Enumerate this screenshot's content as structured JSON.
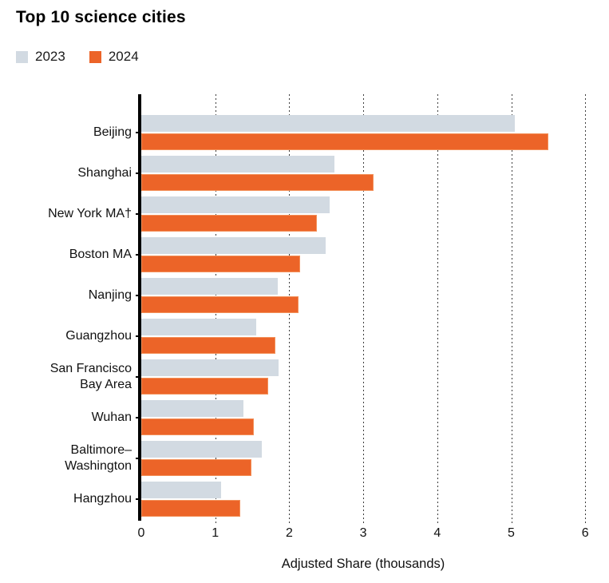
{
  "title": "Top 10 science cities",
  "legend": [
    {
      "label": "2023",
      "color": "#D2DAE2"
    },
    {
      "label": "2024",
      "color": "#EC6428"
    }
  ],
  "colors": {
    "bar_2023": "#D2DAE2",
    "bar_2024": "#EC6428",
    "axis": "#000000",
    "gridline": "#3D3D3D",
    "background": "#FFFFFF"
  },
  "chart_data": {
    "type": "bar",
    "orientation": "horizontal",
    "title": "Top 10 science cities",
    "xlabel": "Adjusted Share (thousands)",
    "ylabel": "",
    "xlim": [
      0,
      6
    ],
    "x_ticks": [
      0,
      1,
      2,
      3,
      4,
      5,
      6
    ],
    "grid": "vertical-dotted",
    "legend_position": "top-left",
    "categories": [
      "Beijing",
      "Shanghai",
      "New York MA†",
      "Boston MA",
      "Nanjing",
      "Guangzhou",
      "San Francisco Bay Area",
      "Wuhan",
      "Baltimore–Washington",
      "Hangzhou"
    ],
    "category_lines": [
      [
        "Beijing"
      ],
      [
        "Shanghai"
      ],
      [
        "New York MA†"
      ],
      [
        "Boston MA"
      ],
      [
        "Nanjing"
      ],
      [
        "Guangzhou"
      ],
      [
        "San Francisco",
        "Bay Area"
      ],
      [
        "Wuhan"
      ],
      [
        "Baltimore–",
        "Washington"
      ],
      [
        "Hangzhou"
      ]
    ],
    "series": [
      {
        "name": "2023",
        "color": "#D2DAE2",
        "values": [
          5.05,
          2.61,
          2.55,
          2.49,
          1.84,
          1.55,
          1.86,
          1.38,
          1.63,
          1.08
        ]
      },
      {
        "name": "2024",
        "color": "#EC6428",
        "values": [
          5.5,
          3.14,
          2.37,
          2.15,
          2.13,
          1.81,
          1.71,
          1.52,
          1.49,
          1.34
        ]
      }
    ]
  }
}
